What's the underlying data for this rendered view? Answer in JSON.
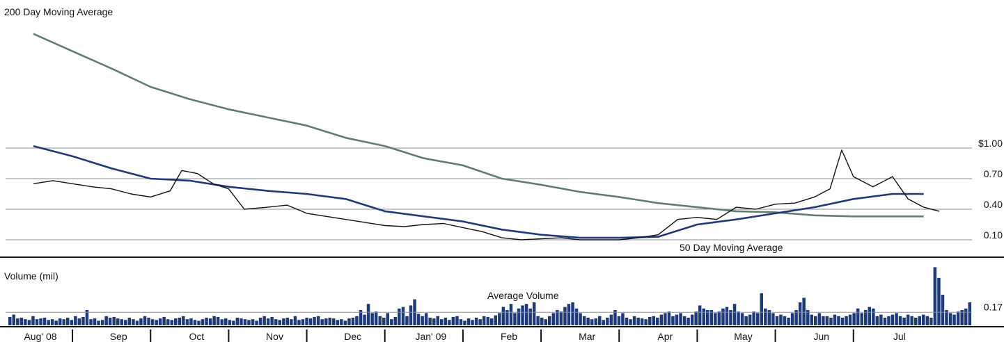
{
  "chart_data": [
    {
      "type": "line",
      "chart_title": "",
      "price_axis": {
        "ticks": [
          1.0,
          0.7,
          0.4,
          0.1
        ],
        "tick_labels": [
          "$1.00",
          "0.70",
          "0.40",
          "0.10"
        ],
        "range": [
          -0.1,
          2.3
        ]
      },
      "labels": {
        "ma200": "200 Day Moving Average",
        "ma50": "50 Day Moving Average"
      },
      "months": [
        "Aug' 08",
        "Sep",
        "Oct",
        "Nov",
        "Dec",
        "Jan' 09",
        "Feb",
        "Mar",
        "Apr",
        "May",
        "Jun",
        "Jul"
      ],
      "series": [
        {
          "key": "ma200",
          "color": "#5f7f6e",
          "points": [
            [
              0,
              2.12
            ],
            [
              0.5,
              1.95
            ],
            [
              1.0,
              1.78
            ],
            [
              1.5,
              1.6
            ],
            [
              2.0,
              1.48
            ],
            [
              2.5,
              1.38
            ],
            [
              3.0,
              1.3
            ],
            [
              3.5,
              1.22
            ],
            [
              4.0,
              1.1
            ],
            [
              4.5,
              1.02
            ],
            [
              5.0,
              0.9
            ],
            [
              5.5,
              0.83
            ],
            [
              6.0,
              0.7
            ],
            [
              6.5,
              0.64
            ],
            [
              7.0,
              0.57
            ],
            [
              7.5,
              0.52
            ],
            [
              8.0,
              0.46
            ],
            [
              8.5,
              0.42
            ],
            [
              9.0,
              0.38
            ],
            [
              9.5,
              0.37
            ],
            [
              10.0,
              0.34
            ],
            [
              10.5,
              0.33
            ],
            [
              11.0,
              0.33
            ],
            [
              11.4,
              0.33
            ]
          ]
        },
        {
          "key": "ma50",
          "color": "#1e3a7a",
          "points": [
            [
              0,
              1.02
            ],
            [
              0.5,
              0.92
            ],
            [
              1.0,
              0.8
            ],
            [
              1.5,
              0.7
            ],
            [
              2.0,
              0.68
            ],
            [
              2.5,
              0.62
            ],
            [
              3.0,
              0.58
            ],
            [
              3.5,
              0.55
            ],
            [
              4.0,
              0.5
            ],
            [
              4.5,
              0.38
            ],
            [
              5.0,
              0.33
            ],
            [
              5.5,
              0.28
            ],
            [
              6.0,
              0.2
            ],
            [
              6.5,
              0.15
            ],
            [
              7.0,
              0.12
            ],
            [
              7.5,
              0.12
            ],
            [
              8.0,
              0.13
            ],
            [
              8.5,
              0.25
            ],
            [
              9.0,
              0.3
            ],
            [
              9.5,
              0.36
            ],
            [
              10.0,
              0.42
            ],
            [
              10.5,
              0.5
            ],
            [
              11.0,
              0.55
            ],
            [
              11.4,
              0.55
            ]
          ]
        },
        {
          "key": "price",
          "color": "#111111",
          "points": [
            [
              0,
              0.65
            ],
            [
              0.25,
              0.68
            ],
            [
              0.5,
              0.65
            ],
            [
              0.75,
              0.62
            ],
            [
              1.0,
              0.6
            ],
            [
              1.25,
              0.55
            ],
            [
              1.5,
              0.52
            ],
            [
              1.75,
              0.58
            ],
            [
              1.9,
              0.78
            ],
            [
              2.1,
              0.75
            ],
            [
              2.3,
              0.65
            ],
            [
              2.5,
              0.6
            ],
            [
              2.7,
              0.4
            ],
            [
              3.0,
              0.42
            ],
            [
              3.25,
              0.44
            ],
            [
              3.5,
              0.36
            ],
            [
              3.75,
              0.33
            ],
            [
              4.0,
              0.3
            ],
            [
              4.25,
              0.27
            ],
            [
              4.5,
              0.24
            ],
            [
              4.75,
              0.23
            ],
            [
              5.0,
              0.25
            ],
            [
              5.25,
              0.26
            ],
            [
              5.5,
              0.22
            ],
            [
              5.75,
              0.18
            ],
            [
              6.0,
              0.12
            ],
            [
              6.25,
              0.1
            ],
            [
              6.5,
              0.11
            ],
            [
              6.75,
              0.12
            ],
            [
              7.0,
              0.1
            ],
            [
              7.25,
              0.1
            ],
            [
              7.5,
              0.1
            ],
            [
              7.75,
              0.12
            ],
            [
              8.0,
              0.15
            ],
            [
              8.25,
              0.3
            ],
            [
              8.5,
              0.32
            ],
            [
              8.75,
              0.3
            ],
            [
              9.0,
              0.42
            ],
            [
              9.25,
              0.4
            ],
            [
              9.5,
              0.45
            ],
            [
              9.75,
              0.46
            ],
            [
              10.0,
              0.52
            ],
            [
              10.2,
              0.6
            ],
            [
              10.35,
              0.98
            ],
            [
              10.5,
              0.72
            ],
            [
              10.75,
              0.62
            ],
            [
              11.0,
              0.72
            ],
            [
              11.2,
              0.5
            ],
            [
              11.4,
              0.42
            ],
            [
              11.6,
              0.38
            ]
          ]
        }
      ]
    },
    {
      "type": "bar",
      "chart_title": "Volume (mil)",
      "average_label": "Average Volume",
      "average_value": 0.17,
      "average_tick_label": "0.17",
      "range": [
        0,
        0.8
      ],
      "values": [
        0.11,
        0.14,
        0.09,
        0.1,
        0.08,
        0.07,
        0.12,
        0.08,
        0.09,
        0.1,
        0.07,
        0.08,
        0.06,
        0.09,
        0.08,
        0.1,
        0.07,
        0.12,
        0.09,
        0.11,
        0.2,
        0.08,
        0.09,
        0.06,
        0.07,
        0.12,
        0.1,
        0.11,
        0.09,
        0.08,
        0.07,
        0.1,
        0.08,
        0.06,
        0.09,
        0.12,
        0.1,
        0.08,
        0.07,
        0.09,
        0.11,
        0.08,
        0.07,
        0.09,
        0.1,
        0.12,
        0.08,
        0.09,
        0.07,
        0.06,
        0.08,
        0.1,
        0.09,
        0.12,
        0.11,
        0.08,
        0.09,
        0.07,
        0.06,
        0.1,
        0.09,
        0.08,
        0.07,
        0.08,
        0.06,
        0.1,
        0.12,
        0.09,
        0.11,
        0.08,
        0.07,
        0.09,
        0.1,
        0.08,
        0.12,
        0.07,
        0.08,
        0.1,
        0.09,
        0.11,
        0.12,
        0.08,
        0.09,
        0.1,
        0.09,
        0.07,
        0.08,
        0.06,
        0.09,
        0.1,
        0.12,
        0.2,
        0.14,
        0.28,
        0.16,
        0.18,
        0.12,
        0.1,
        0.16,
        0.08,
        0.11,
        0.22,
        0.24,
        0.12,
        0.26,
        0.34,
        0.15,
        0.12,
        0.16,
        0.1,
        0.09,
        0.12,
        0.08,
        0.1,
        0.07,
        0.11,
        0.12,
        0.08,
        0.06,
        0.09,
        0.07,
        0.1,
        0.08,
        0.12,
        0.11,
        0.09,
        0.13,
        0.16,
        0.24,
        0.2,
        0.28,
        0.16,
        0.22,
        0.26,
        0.28,
        0.22,
        0.3,
        0.12,
        0.1,
        0.08,
        0.12,
        0.16,
        0.2,
        0.18,
        0.24,
        0.28,
        0.3,
        0.22,
        0.16,
        0.12,
        0.1,
        0.08,
        0.09,
        0.12,
        0.07,
        0.1,
        0.14,
        0.2,
        0.12,
        0.16,
        0.1,
        0.08,
        0.12,
        0.1,
        0.09,
        0.08,
        0.11,
        0.12,
        0.1,
        0.14,
        0.16,
        0.18,
        0.12,
        0.14,
        0.16,
        0.12,
        0.1,
        0.14,
        0.18,
        0.26,
        0.22,
        0.2,
        0.2,
        0.16,
        0.18,
        0.22,
        0.24,
        0.2,
        0.28,
        0.18,
        0.16,
        0.12,
        0.14,
        0.18,
        0.16,
        0.42,
        0.22,
        0.2,
        0.16,
        0.12,
        0.14,
        0.12,
        0.1,
        0.16,
        0.2,
        0.3,
        0.36,
        0.2,
        0.14,
        0.12,
        0.16,
        0.12,
        0.12,
        0.1,
        0.14,
        0.12,
        0.1,
        0.12,
        0.14,
        0.16,
        0.22,
        0.16,
        0.2,
        0.24,
        0.22,
        0.12,
        0.14,
        0.1,
        0.12,
        0.14,
        0.16,
        0.12,
        0.1,
        0.14,
        0.12,
        0.1,
        0.12,
        0.14,
        0.12,
        0.1,
        0.76,
        0.62,
        0.4,
        0.2,
        0.16,
        0.14,
        0.18,
        0.2,
        0.22,
        0.3
      ]
    }
  ]
}
